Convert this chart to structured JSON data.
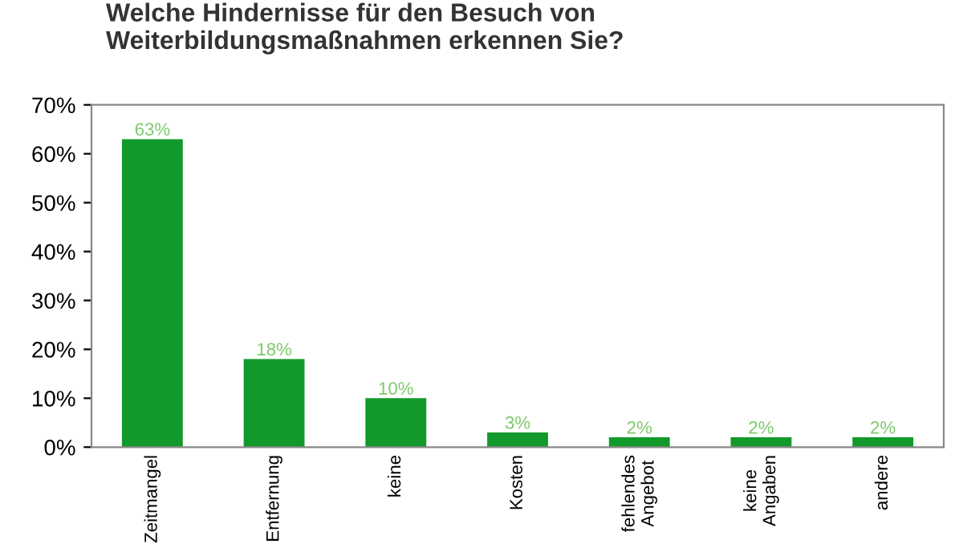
{
  "chart_data": {
    "type": "bar",
    "title": "Welche Hindernisse für den Besuch von\nWeiterbildungsmaßnahmen erkennen Sie?",
    "categories": [
      "Zeitmangel",
      "Entfernung",
      "keine",
      "Kosten",
      "fehlendes\nAngebot",
      "keine\nAngaben",
      "andere"
    ],
    "values": [
      63,
      18,
      10,
      3,
      2,
      2,
      2
    ],
    "color": "#119a2b",
    "value_labels": [
      "63%",
      "18%",
      "10%",
      "3%",
      "2%",
      "2%",
      "2%"
    ],
    "ylim": [
      0,
      70
    ],
    "yticks": [
      {
        "value": 0,
        "label": "0%"
      },
      {
        "value": 10,
        "label": "10%"
      },
      {
        "value": 20,
        "label": "20%"
      },
      {
        "value": 30,
        "label": "30%"
      },
      {
        "value": 40,
        "label": "40%"
      },
      {
        "value": 50,
        "label": "50%"
      },
      {
        "value": 60,
        "label": "60%"
      },
      {
        "value": 70,
        "label": "70%"
      }
    ],
    "grid": false
  }
}
